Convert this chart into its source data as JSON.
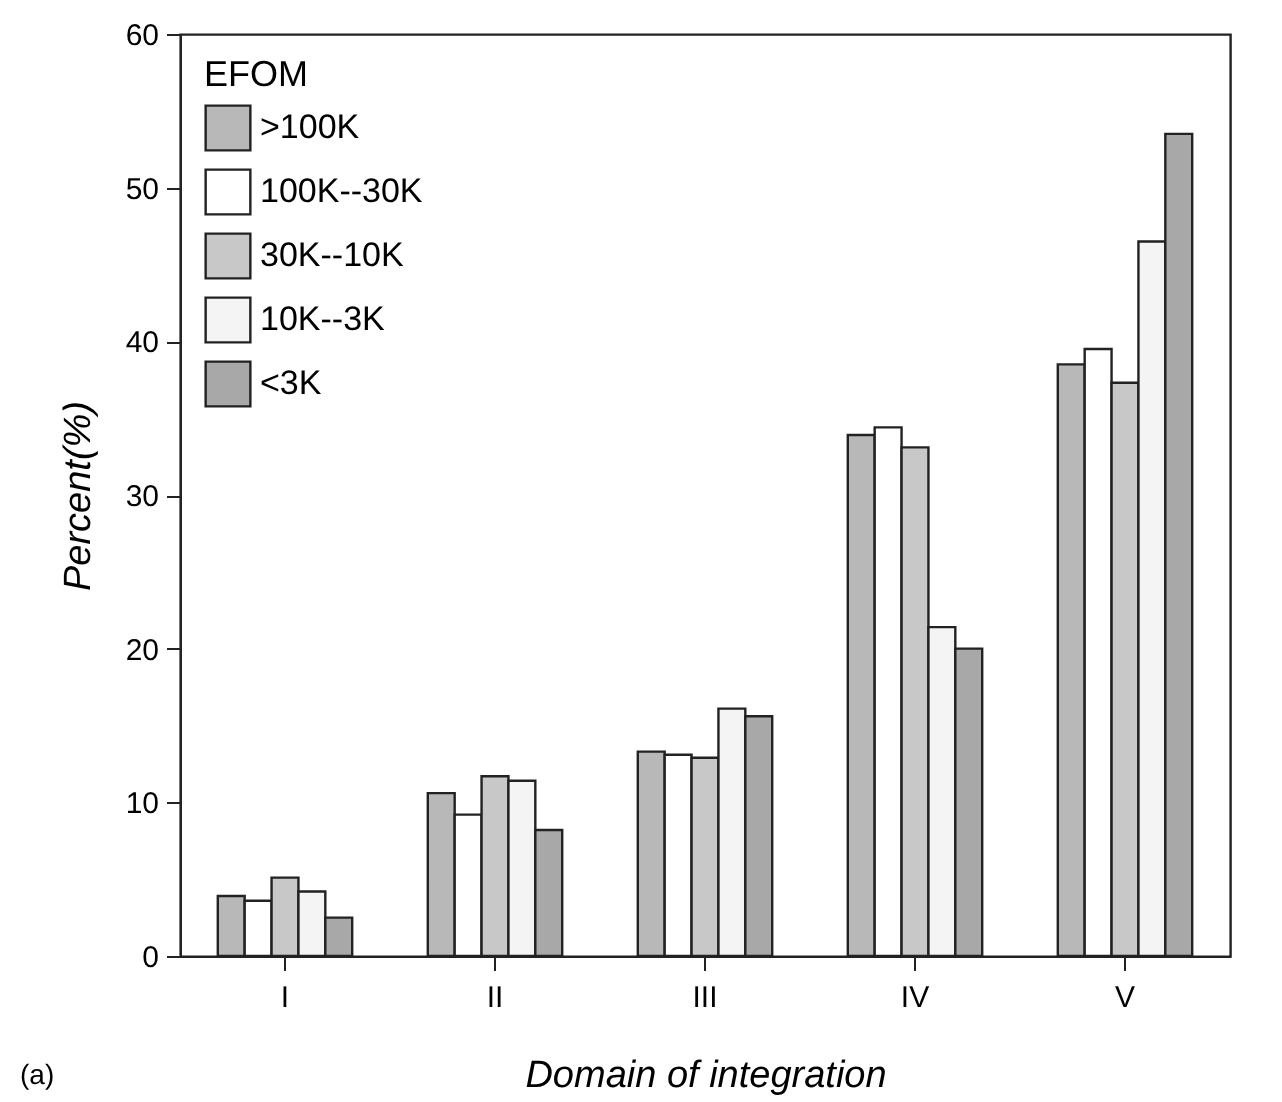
{
  "chart_data": {
    "type": "bar",
    "xlabel": "Domain of integration",
    "ylabel": "Percent(%)",
    "legend_title": "EFOM",
    "categories": [
      "I",
      "II",
      "III",
      "IV",
      "V"
    ],
    "series": [
      {
        "name": ">100K",
        "color": "#b8b8b8",
        "values": [
          3.9,
          10.6,
          13.3,
          33.9,
          38.5
        ]
      },
      {
        "name": "100K--30K",
        "color": "#ffffff",
        "values": [
          3.6,
          9.2,
          13.1,
          34.4,
          39.5
        ]
      },
      {
        "name": "30K--10K",
        "color": "#c8c8c8",
        "values": [
          5.1,
          11.7,
          12.9,
          33.1,
          37.3
        ]
      },
      {
        "name": "10K--3K",
        "color": "#f4f4f4",
        "values": [
          4.2,
          11.4,
          16.1,
          21.4,
          46.5
        ]
      },
      {
        "name": "<3K",
        "color": "#a8a8a8",
        "values": [
          2.5,
          8.2,
          15.6,
          20.0,
          53.5
        ]
      }
    ],
    "ylim": [
      0,
      60
    ],
    "yticks": [
      0,
      10,
      20,
      30,
      40,
      50,
      60
    ],
    "grid": false,
    "legend": "top left",
    "annotations": [
      "(a)"
    ]
  }
}
